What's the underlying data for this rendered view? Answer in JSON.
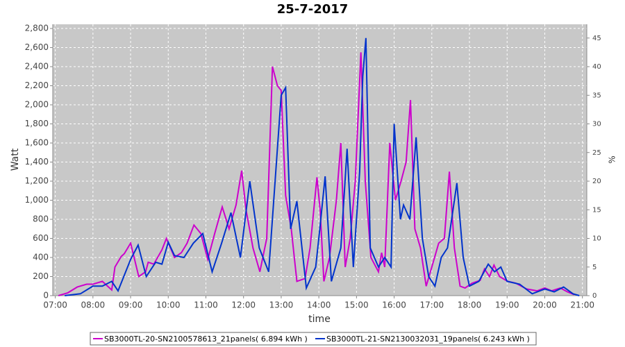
{
  "chart_data": {
    "type": "line",
    "title": "25-7-2017",
    "xlabel": "time",
    "ylabel": "Watt",
    "y2label": "%",
    "xlim": [
      "06:56",
      "21:07"
    ],
    "xticks": [
      "07:00",
      "08:00",
      "09:00",
      "10:00",
      "11:00",
      "12:00",
      "13:00",
      "14:00",
      "15:00",
      "16:00",
      "17:00",
      "18:00",
      "19:00",
      "20:00",
      "21:00"
    ],
    "ylim": [
      0,
      2844
    ],
    "yticks": [
      0,
      200,
      400,
      600,
      800,
      {
        "value": 1000,
        "label": "1,000"
      },
      {
        "value": 1200,
        "label": "1,200"
      },
      {
        "value": 1400,
        "label": "1,400"
      },
      {
        "value": 1600,
        "label": "1,600"
      },
      {
        "value": 1800,
        "label": "1,800"
      },
      {
        "value": 2000,
        "label": "2,000"
      },
      {
        "value": 2200,
        "label": "2,200"
      },
      {
        "value": 2400,
        "label": "2,400"
      },
      {
        "value": 2600,
        "label": "2,600"
      },
      {
        "value": 2800,
        "label": "2,800"
      }
    ],
    "y2lim": [
      0,
      47.4
    ],
    "y2ticks": [
      0,
      5,
      10,
      15,
      20,
      25,
      30,
      35,
      40,
      45
    ],
    "grid": true,
    "legend": "bottom",
    "series": [
      {
        "name": "SB3000TL-20-SN2100578613_21panels( 6.894 kWh )",
        "color": "#cc00cc",
        "x": [
          "07:05",
          "07:20",
          "07:35",
          "07:50",
          "08:00",
          "08:15",
          "08:30",
          "08:35",
          "08:45",
          "08:50",
          "09:00",
          "09:13",
          "09:24",
          "09:28",
          "09:37",
          "09:50",
          "09:57",
          "10:10",
          "10:21",
          "10:30",
          "10:41",
          "10:52",
          "11:03",
          "11:14",
          "11:26",
          "11:37",
          "11:48",
          "11:57",
          "12:04",
          "12:15",
          "12:26",
          "12:37",
          "12:46",
          "12:54",
          "13:00",
          "13:07",
          "13:16",
          "13:25",
          "13:38",
          "13:46",
          "13:57",
          "14:02",
          "14:08",
          "14:17",
          "14:28",
          "14:35",
          "14:42",
          "14:50",
          "14:58",
          "15:07",
          "15:14",
          "15:23",
          "15:35",
          "15:40",
          "15:45",
          "15:53",
          "16:02",
          "16:11",
          "16:19",
          "16:26",
          "16:33",
          "16:42",
          "16:51",
          "17:00",
          "17:11",
          "17:20",
          "17:28",
          "17:36",
          "17:45",
          "17:53",
          "18:04",
          "18:17",
          "18:24",
          "18:32",
          "18:39",
          "18:48",
          "19:01",
          "19:14",
          "19:31",
          "19:48",
          "20:00",
          "20:11",
          "20:25",
          "20:36",
          "20:47"
        ],
        "values": [
          0,
          30,
          90,
          120,
          120,
          150,
          60,
          300,
          410,
          440,
          550,
          200,
          250,
          350,
          330,
          480,
          600,
          400,
          450,
          550,
          740,
          650,
          380,
          650,
          930,
          700,
          950,
          1310,
          900,
          500,
          250,
          600,
          2400,
          2200,
          2150,
          1050,
          700,
          150,
          180,
          500,
          1240,
          900,
          150,
          400,
          1000,
          1600,
          300,
          600,
          1200,
          2550,
          1200,
          400,
          250,
          450,
          300,
          1600,
          1000,
          1200,
          1400,
          2050,
          700,
          500,
          100,
          300,
          550,
          600,
          1300,
          500,
          100,
          80,
          130,
          160,
          280,
          200,
          320,
          200,
          150,
          130,
          70,
          50,
          80,
          50,
          80,
          40,
          10
        ]
      },
      {
        "name": "SB3000TL-21-SN2130032031_19panels( 6.243 kWh )",
        "color": "#0033cc",
        "x": [
          "07:15",
          "07:40",
          "08:00",
          "08:15",
          "08:30",
          "08:40",
          "09:00",
          "09:12",
          "09:25",
          "09:40",
          "09:50",
          "10:00",
          "10:10",
          "10:25",
          "10:40",
          "10:55",
          "11:10",
          "11:25",
          "11:40",
          "11:55",
          "12:10",
          "12:25",
          "12:40",
          "13:00",
          "13:07",
          "13:15",
          "13:25",
          "13:40",
          "13:55",
          "14:00",
          "14:10",
          "14:20",
          "14:35",
          "14:45",
          "14:55",
          "15:05",
          "15:10",
          "15:15",
          "15:22",
          "15:35",
          "15:45",
          "15:55",
          "16:00",
          "16:10",
          "16:15",
          "16:25",
          "16:35",
          "16:45",
          "16:55",
          "17:05",
          "17:15",
          "17:25",
          "17:40",
          "17:50",
          "18:00",
          "18:15",
          "18:30",
          "18:40",
          "18:50",
          "19:00",
          "19:20",
          "19:40",
          "20:00",
          "20:15",
          "20:30",
          "20:45",
          "20:55"
        ],
        "values": [
          0,
          20,
          100,
          100,
          150,
          50,
          380,
          530,
          200,
          350,
          330,
          560,
          420,
          400,
          550,
          650,
          250,
          550,
          870,
          400,
          1200,
          500,
          250,
          2100,
          2180,
          700,
          990,
          80,
          300,
          600,
          1250,
          150,
          500,
          1540,
          300,
          1300,
          2300,
          2700,
          500,
          300,
          400,
          300,
          1800,
          800,
          950,
          800,
          1660,
          600,
          200,
          100,
          400,
          500,
          1180,
          400,
          100,
          150,
          330,
          250,
          300,
          150,
          120,
          20,
          70,
          40,
          90,
          20,
          0
        ]
      }
    ]
  }
}
